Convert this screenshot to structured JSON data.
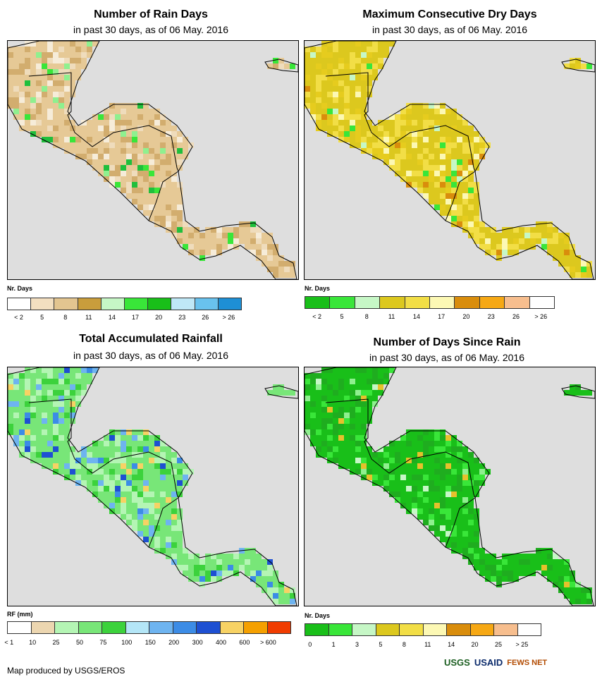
{
  "panels": [
    {
      "title": "Number of Rain Days",
      "subtitle": "in past 30 days, as of 06 May. 2016",
      "legend_title": "Nr. Days",
      "colors": [
        "#ffffff",
        "#f3dfc0",
        "#e3c590",
        "#c99d3c",
        "#c6f7c6",
        "#39e639",
        "#19bf19",
        "#bfe8f7",
        "#69c2ee",
        "#1e8fd5"
      ],
      "ticks": [
        "< 2",
        "5",
        "8",
        "11",
        "14",
        "17",
        "20",
        "23",
        "26",
        "> 26"
      ],
      "map_palette": [
        "#e6c996",
        "#d2ad6e",
        "#efdcbc",
        "#f6ecd9",
        "#39e639",
        "#8ff08f",
        "#1fbf3c"
      ]
    },
    {
      "title": "Maximum Consecutive Dry Days",
      "subtitle": "in past 30 days, as of 06 May. 2016",
      "legend_title": "Nr. Days",
      "colors": [
        "#19bf19",
        "#39e639",
        "#c6f7c6",
        "#dcc81e",
        "#f2de46",
        "#fcf8b4",
        "#d98d0c",
        "#f6a814",
        "#f7be8e",
        "#ffffff"
      ],
      "ticks": [
        "< 2",
        "5",
        "8",
        "11",
        "14",
        "17",
        "20",
        "23",
        "26",
        "> 26"
      ],
      "map_palette": [
        "#dcc81e",
        "#f2de46",
        "#e6cc1e",
        "#fcf8b4",
        "#39e639",
        "#c6f7c6",
        "#d98d0c"
      ]
    },
    {
      "title": "Total Accumulated Rainfall",
      "subtitle": "in past 30 days, as of 06 May. 2016",
      "legend_title": "RF (mm)",
      "colors": [
        "#ffffff",
        "#ecd6b0",
        "#b4f5b4",
        "#78e678",
        "#3cd23c",
        "#b4e6f7",
        "#6eb4f0",
        "#3c8ce6",
        "#1e50d2",
        "#f7d264",
        "#f5a000",
        "#f03c00"
      ],
      "ticks": [
        "< 1",
        "10",
        "25",
        "50",
        "75",
        "100",
        "150",
        "200",
        "300",
        "400",
        "600",
        "> 600"
      ],
      "map_palette": [
        "#78e678",
        "#b4f5b4",
        "#3cd23c",
        "#6eb4f0",
        "#3c8ce6",
        "#1e50d2",
        "#f7d264"
      ]
    },
    {
      "title": "Number of Days Since Rain",
      "subtitle": "in past 30 days, as of 06 May. 2016",
      "legend_title": "Nr. Days",
      "colors": [
        "#19bf19",
        "#39e639",
        "#c6f7c6",
        "#dcc81e",
        "#f2de46",
        "#fcf8b4",
        "#d98d0c",
        "#f6a814",
        "#f7be8e",
        "#ffffff"
      ],
      "ticks": [
        "0",
        "1",
        "3",
        "5",
        "8",
        "11",
        "14",
        "20",
        "25",
        "> 25"
      ],
      "map_palette": [
        "#19bf19",
        "#1fad1f",
        "#39e639",
        "#19bf19",
        "#8ff08f",
        "#e6c12c",
        "#c6f7c6"
      ]
    }
  ],
  "credit": "Map produced by USGS/EROS",
  "logos": [
    "USGS",
    "USAID",
    "FEWS NET"
  ]
}
